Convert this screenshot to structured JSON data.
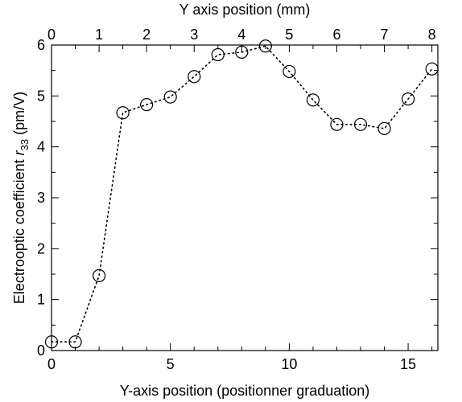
{
  "chart_data": {
    "type": "scatter",
    "title": "",
    "xlabel": "Y-axis position (positionner graduation)",
    "ylabel_text": "Electrooptic coefficient ",
    "ylabel_symbol": "r",
    "ylabel_subscript": "33",
    "ylabel_units": " (pm/V)",
    "x2label": "Y axis position (mm)",
    "xlim": [
      0,
      16.25
    ],
    "ylim": [
      0,
      6
    ],
    "x2lim": [
      0,
      8.125
    ],
    "x_ticks": [
      0,
      5,
      10,
      15
    ],
    "y_ticks": [
      0,
      1,
      2,
      3,
      4,
      5,
      6
    ],
    "x2_ticks": [
      0,
      1,
      2,
      3,
      4,
      5,
      6,
      7,
      8
    ],
    "x_minor_step": 1,
    "y_minor_step": 0.5,
    "x2_minor_step": 0.5,
    "grid": false,
    "series": [
      {
        "x": [
          0,
          1,
          2,
          3,
          4,
          5,
          6,
          7,
          8,
          9,
          10,
          11,
          12,
          13,
          14,
          15,
          16
        ],
        "y": [
          0.17,
          0.17,
          1.47,
          4.67,
          4.83,
          4.98,
          5.38,
          5.81,
          5.86,
          5.98,
          5.48,
          4.92,
          4.44,
          4.44,
          4.36,
          4.94,
          5.53
        ],
        "marker": "open-circle",
        "line": "dotted"
      }
    ]
  }
}
